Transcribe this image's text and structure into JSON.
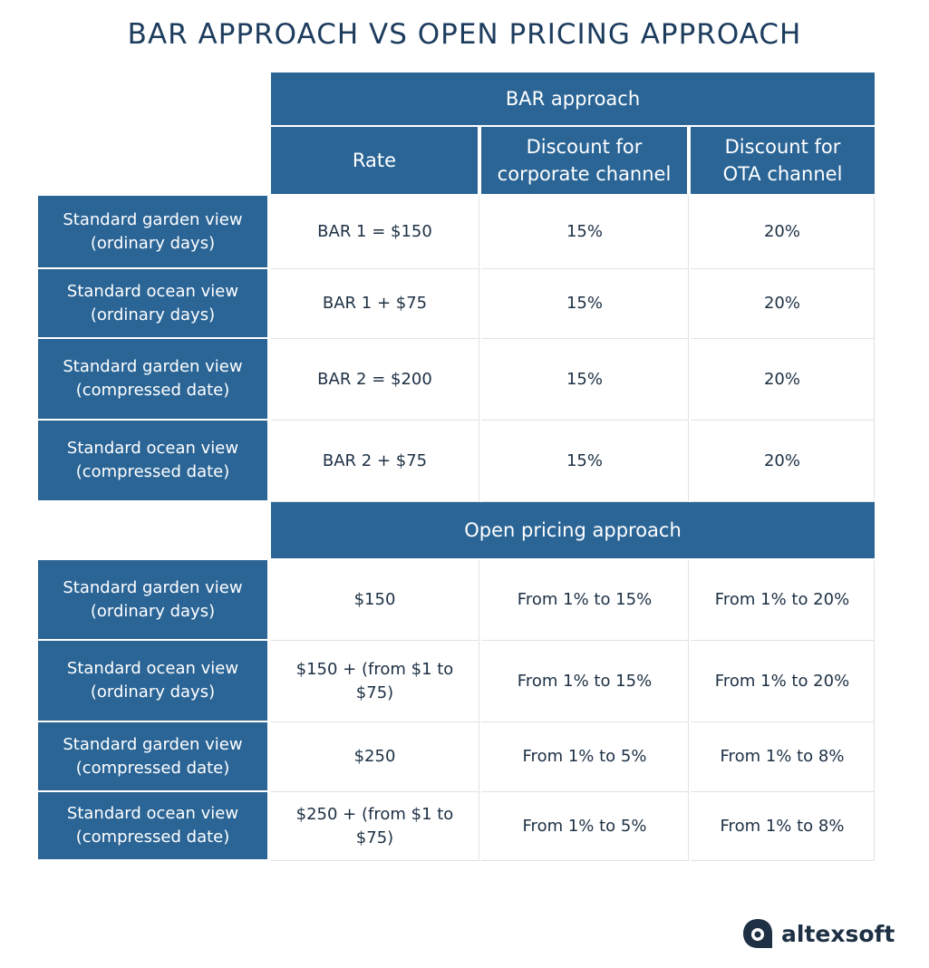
{
  "title": "BAR APPROACH VS OPEN PRICING APPROACH",
  "bar_section": {
    "header": "BAR approach",
    "columns": [
      "Rate",
      "Discount for\ncorporate channel",
      "Discount for\nOTA channel"
    ],
    "rows": [
      {
        "label": "Standard garden view\n(ordinary days)",
        "cells": [
          "BAR 1 = $150",
          "15%",
          "20%"
        ]
      },
      {
        "label": "Standard ocean view\n(ordinary days)",
        "cells": [
          "BAR 1 + $75",
          "15%",
          "20%"
        ]
      },
      {
        "label": "Standard garden view\n(compressed date)",
        "cells": [
          "BAR 2 = $200",
          "15%",
          "20%"
        ]
      },
      {
        "label": "Standard ocean view\n(compressed date)",
        "cells": [
          "BAR 2 + $75",
          "15%",
          "20%"
        ]
      }
    ]
  },
  "open_section": {
    "header": "Open pricing approach",
    "rows": [
      {
        "label": "Standard garden view\n(ordinary days)",
        "cells": [
          "$150",
          "From 1% to 15%",
          "From 1% to 20%"
        ]
      },
      {
        "label": "Standard ocean view\n(ordinary days)",
        "cells": [
          "$150 + (from $1 to\n$75)",
          "From 1% to 15%",
          "From 1% to 20%"
        ]
      },
      {
        "label": "Standard garden view\n(compressed date)",
        "cells": [
          "$250",
          "From 1% to 5%",
          "From 1% to 8%"
        ]
      },
      {
        "label": "Standard ocean view\n(compressed date)",
        "cells": [
          "$250 + (from $1 to\n$75)",
          "From 1% to 5%",
          "From 1% to 8%"
        ]
      }
    ]
  },
  "logo": {
    "text": "altexsoft"
  }
}
